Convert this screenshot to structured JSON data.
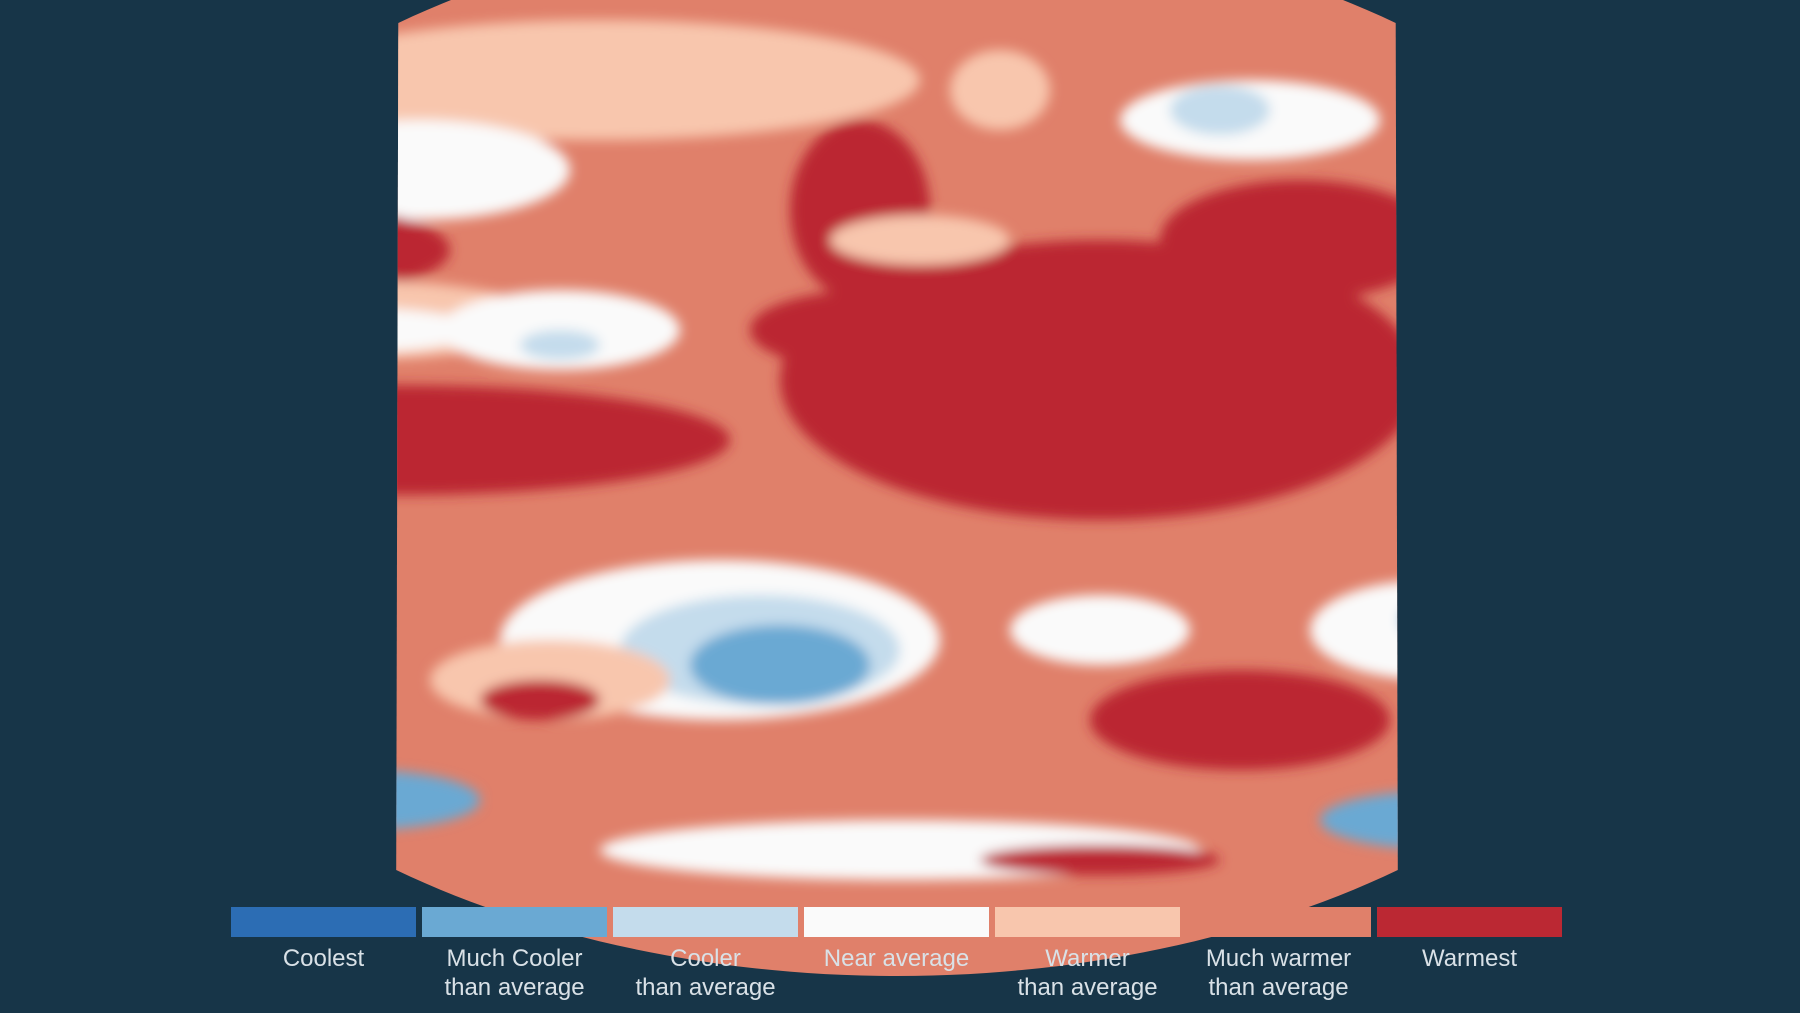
{
  "legend": {
    "items": [
      {
        "label": "Coolest",
        "color": "#2c6db4"
      },
      {
        "label": "Much Cooler\nthan average",
        "color": "#6aa9d3"
      },
      {
        "label": "Cooler\nthan average",
        "color": "#c4dcec"
      },
      {
        "label": "Near average",
        "color": "#fafafa"
      },
      {
        "label": "Warmer\nthan average",
        "color": "#f8c6ad"
      },
      {
        "label": "Much warmer\nthan average",
        "color": "#e0806a"
      },
      {
        "label": "Warmest",
        "color": "#bb2833"
      }
    ]
  }
}
